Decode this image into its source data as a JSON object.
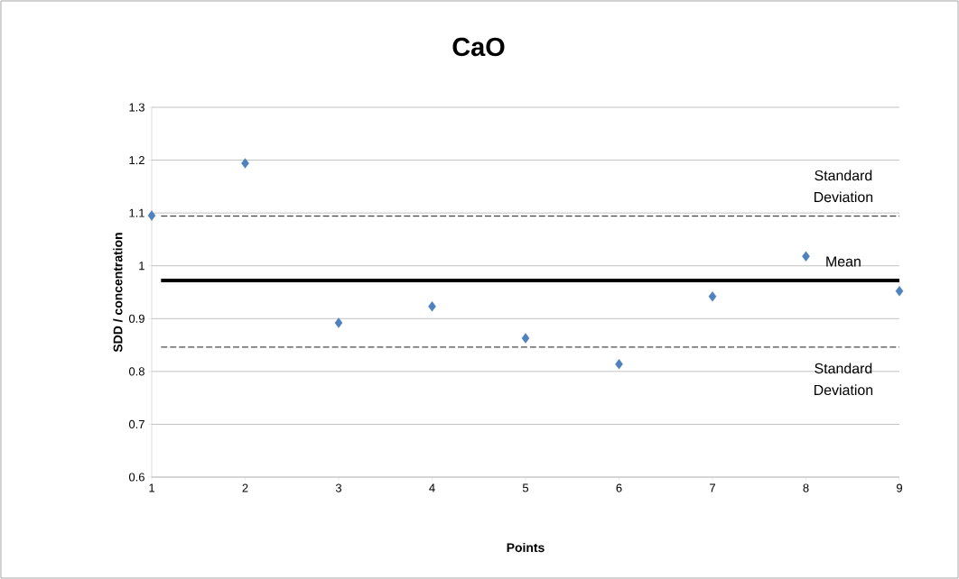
{
  "chart_data": {
    "type": "scatter",
    "title": "CaO",
    "xlabel": "Points",
    "ylabel": "SDD / concentration",
    "x": [
      1,
      2,
      3,
      4,
      5,
      6,
      7,
      8,
      9
    ],
    "series": [
      {
        "color": "#4f81bd",
        "values": [
          1.095,
          1.194,
          0.892,
          0.923,
          0.863,
          0.814,
          0.942,
          1.018,
          0.952
        ]
      }
    ],
    "xlim": [
      1,
      9
    ],
    "xticks": [
      1,
      2,
      3,
      4,
      5,
      6,
      7,
      8,
      9
    ],
    "ylim": [
      0.6,
      1.3
    ],
    "yticks": [
      0.6,
      0.7,
      0.8,
      0.9,
      1,
      1.1,
      1.2,
      1.3
    ],
    "ref_lines": [
      {
        "axis": "y",
        "value": 1.094,
        "label": "Standard Deviation",
        "line_style": "dashed",
        "color": "#000000"
      },
      {
        "axis": "y",
        "value": 0.972,
        "label": "Mean",
        "line_style": "solid",
        "color": "#000000"
      },
      {
        "axis": "y",
        "value": 0.846,
        "label": "Standard Deviation",
        "line_style": "dashed",
        "color": "#000000"
      }
    ],
    "grid": "y",
    "marker": "diamond"
  }
}
